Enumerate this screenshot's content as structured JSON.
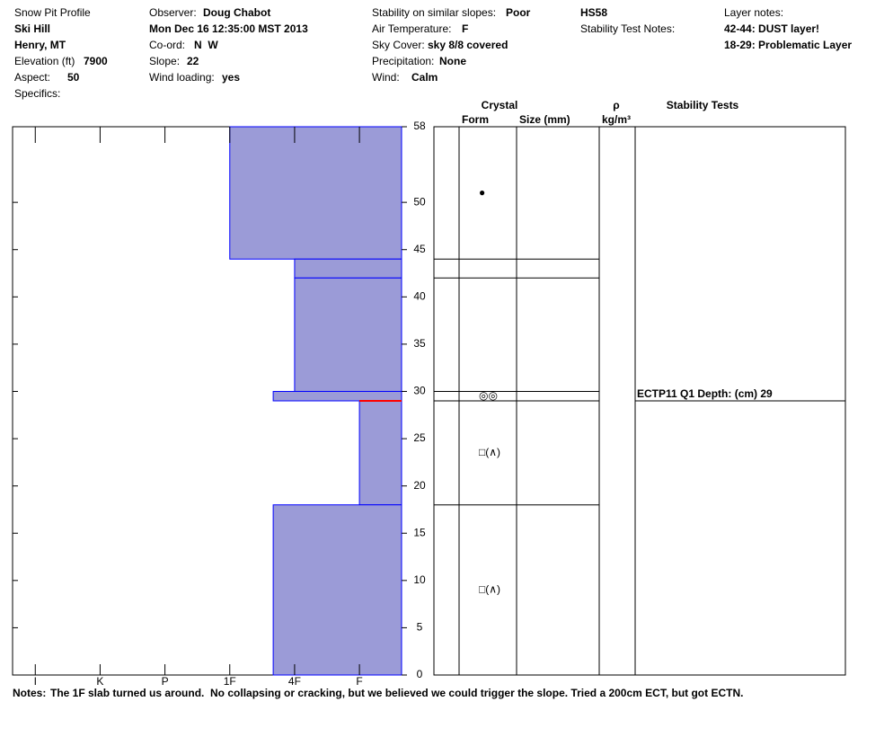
{
  "header": {
    "title": "Snow Pit Profile",
    "location": "Ski Hill",
    "region": "Henry, MT",
    "elevation_label": "Elevation (ft)",
    "elevation": "7900",
    "aspect_label": "Aspect:",
    "aspect": "50",
    "specifics_label": "Specifics:",
    "observer_label": "Observer:",
    "observer": "Doug Chabot",
    "datetime": "Mon Dec 16 12:35:00 MST 2013",
    "coord_label": "Co-ord:",
    "coord": "N  W",
    "slope_label": "Slope:",
    "slope": "22",
    "wind_loading_label": "Wind loading:",
    "wind_loading": "yes",
    "stability_label": "Stability on similar slopes:",
    "stability": "Poor",
    "air_temp_label": "Air Temperature:",
    "air_temp": "F",
    "sky_label": "Sky Cover:",
    "sky": "sky 8/8 covered",
    "precip_label": "Precipitation:",
    "precip": "None",
    "wind_label": "Wind:",
    "wind": "Calm",
    "hs": "HS58",
    "stability_notes_label": "Stability Test Notes:",
    "layer_notes_label": "Layer notes:",
    "layer_notes": [
      "42-44: DUST layer!",
      "18-29: Problematic Layer"
    ]
  },
  "chart_data": {
    "type": "snowpit",
    "ylim": [
      0,
      58
    ],
    "yticks": [
      0,
      5,
      10,
      15,
      20,
      25,
      30,
      35,
      40,
      45,
      50,
      58
    ],
    "xlim": [
      0.65,
      6.65
    ],
    "xticks": [
      {
        "value": 1,
        "label": "I"
      },
      {
        "value": 2,
        "label": "K"
      },
      {
        "value": 3,
        "label": "P"
      },
      {
        "value": 4,
        "label": "1F"
      },
      {
        "value": 5,
        "label": "4F"
      },
      {
        "value": 6,
        "label": "F"
      }
    ],
    "layer_color": "#9b9bd7",
    "columns": {
      "crystal": "Crystal",
      "form": "Form",
      "size": "Size (mm)",
      "density": "ρ",
      "density_unit": "kg/m³",
      "tests": "Stability Tests"
    },
    "layers": [
      {
        "top": 58,
        "bottom": 44,
        "hardness": 4,
        "form": "●"
      },
      {
        "top": 44,
        "bottom": 42,
        "hardness": 5,
        "form": null
      },
      {
        "top": 42,
        "bottom": 30,
        "hardness": 5,
        "form": null
      },
      {
        "top": 30,
        "bottom": 29,
        "hardness": 4.67,
        "form": "◎◎"
      },
      {
        "top": 29,
        "bottom": 18,
        "hardness": 6,
        "form": "□(∧)"
      },
      {
        "top": 18,
        "bottom": 0,
        "hardness": 4.67,
        "form": "□(∧)"
      }
    ],
    "stability_tests": [
      {
        "label": "ECTP11 Q1 Depth: (cm) 29",
        "depth": 29,
        "color": "#ff0000"
      }
    ],
    "notes_label": "Notes:",
    "notes": "The 1F slab turned us around.  No collapsing or cracking, but we believed we could trigger the slope. Tried a 200cm ECT, but got ECTN."
  }
}
